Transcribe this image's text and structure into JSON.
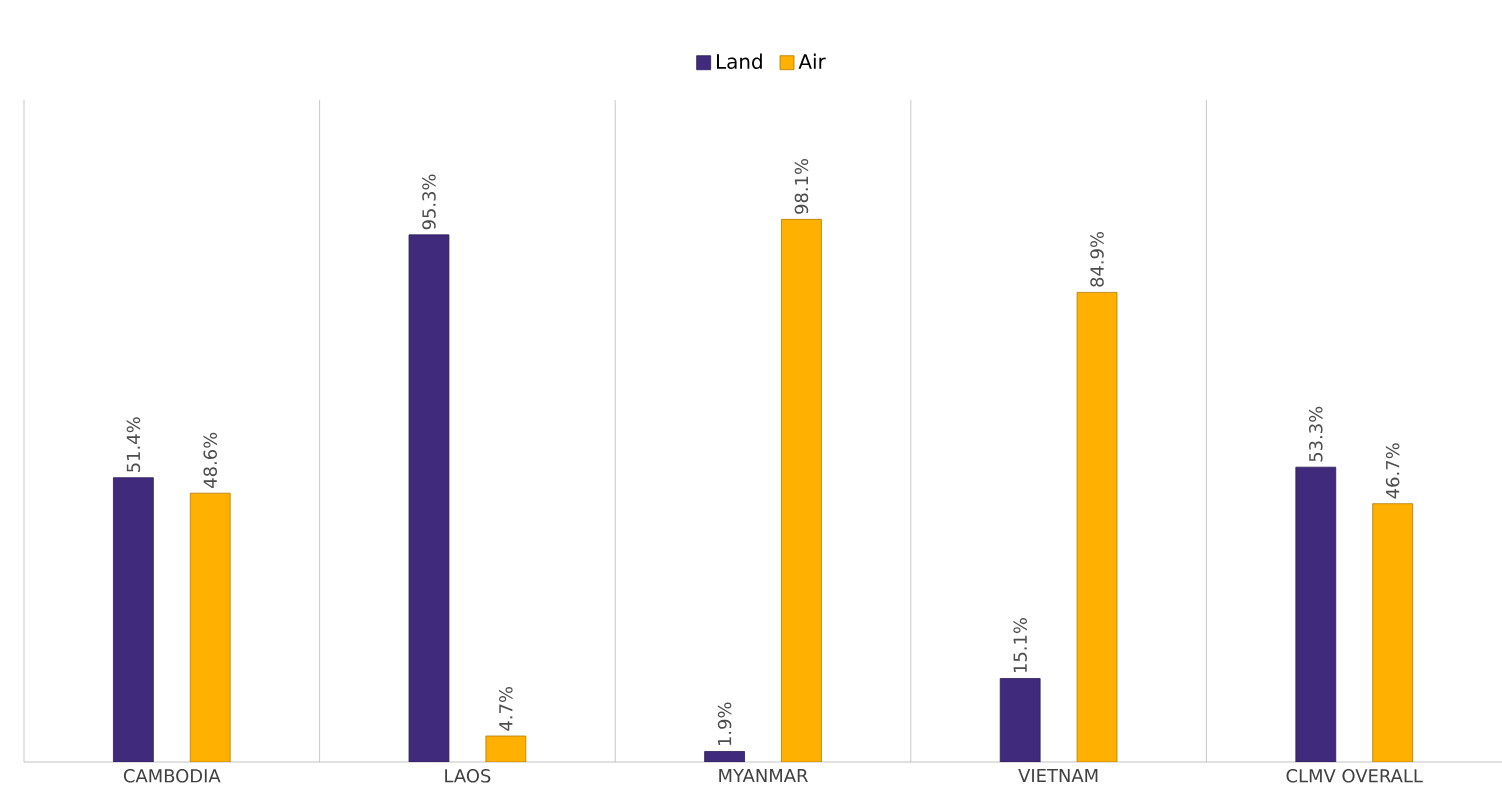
{
  "chart_data": {
    "type": "bar",
    "categories": [
      "CAMBODIA",
      "LAOS",
      "MYANMAR",
      "VIETNAM",
      "CLMV  OVERALL"
    ],
    "series": [
      {
        "name": "Land",
        "color": "#3f2a7c",
        "values": [
          51.4,
          95.3,
          1.9,
          15.1,
          53.3
        ],
        "value_labels": [
          "51.4%",
          "95.3%",
          "1.9%",
          "15.1%",
          "53.3%"
        ]
      },
      {
        "name": "Air",
        "color": "#ffb000",
        "values": [
          48.6,
          4.7,
          98.1,
          84.9,
          46.7
        ],
        "value_labels": [
          "48.6%",
          "4.7%",
          "98.1%",
          "84.9%",
          "46.7%"
        ]
      }
    ],
    "grid": "x",
    "legend": "top"
  }
}
